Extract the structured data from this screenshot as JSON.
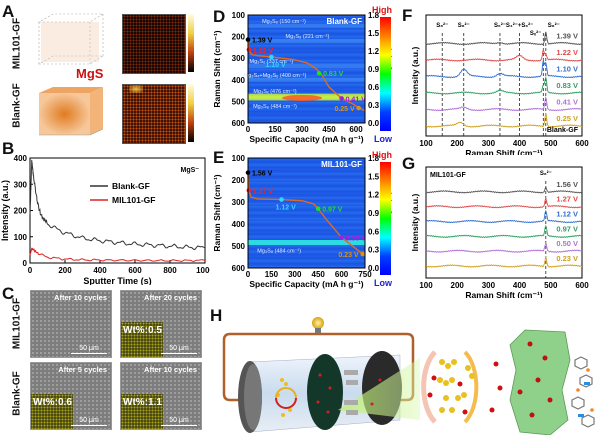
{
  "panels": {
    "A": {
      "label": "A",
      "row_labels": [
        "MIL101-GF",
        "Blank-GF"
      ],
      "species_label": "MgS",
      "species_color": "#cc1111"
    },
    "B": {
      "label": "B"
    },
    "C": {
      "label": "C",
      "row_labels": [
        "MIL101-GF",
        "Blank-GF"
      ],
      "images": [
        {
          "caption": "After 10 cycles",
          "scale": "50 μm",
          "wt": ""
        },
        {
          "caption": "After 20 cycles",
          "scale": "50 μm",
          "wt": "Wt%:0.5"
        },
        {
          "caption": "After 5 cycles",
          "scale": "50 μm",
          "wt": "Wt%:0.6"
        },
        {
          "caption": "After 10 cycles",
          "scale": "50 μm",
          "wt": "Wt%:1.1"
        }
      ]
    },
    "D": {
      "label": "D"
    },
    "E": {
      "label": "E"
    },
    "F": {
      "label": "F"
    },
    "G": {
      "label": "G"
    },
    "H": {
      "label": "H"
    }
  },
  "colorbar": {
    "high": "High",
    "low": "Low"
  },
  "chart_data": [
    {
      "id": "B",
      "type": "line",
      "title": "",
      "annotation": "MgS⁻",
      "xlabel": "Sputter Time (s)",
      "ylabel": "Intensity (a.u.)",
      "xlim": [
        0,
        1000
      ],
      "ylim": [
        0,
        400
      ],
      "xticks": [
        0,
        200,
        400,
        600,
        800,
        1000
      ],
      "yticks": [
        0,
        100,
        200,
        300,
        400
      ],
      "legend": "top-center",
      "series": [
        {
          "name": "Blank-GF",
          "color": "#333333",
          "x": [
            0,
            10,
            20,
            40,
            60,
            100,
            150,
            200,
            300,
            400,
            500,
            600,
            700,
            800,
            900,
            1000
          ],
          "y": [
            180,
            390,
            330,
            240,
            185,
            150,
            130,
            115,
            95,
            85,
            78,
            72,
            68,
            64,
            60,
            58
          ]
        },
        {
          "name": "MIL101-GF",
          "color": "#e02020",
          "x": [
            0,
            10,
            20,
            50,
            100,
            150,
            200,
            300,
            400,
            600,
            800,
            1000
          ],
          "y": [
            30,
            55,
            50,
            35,
            22,
            18,
            15,
            12,
            11,
            10,
            9,
            10
          ]
        }
      ]
    },
    {
      "id": "D",
      "type": "heatmap",
      "sample": "Blank-GF",
      "xlabel": "Specific Capacity (mA h g⁻¹)",
      "ylabel": "Raman Shift (cm⁻¹)",
      "y2label": "Voltage (V)",
      "xlim": [
        0,
        650
      ],
      "ylim": [
        100,
        600
      ],
      "y2lim": [
        0,
        1.8
      ],
      "xticks": [
        0,
        150,
        300,
        450,
        600
      ],
      "yticks": [
        100,
        200,
        300,
        400,
        500,
        600
      ],
      "y2ticks": [
        "0.0",
        "0.3",
        "0.6",
        "0.9",
        "1.2",
        "1.5",
        "1.8"
      ],
      "bands": [
        {
          "label": "Mg₃S₈ (150 cm⁻¹)",
          "shift": 150,
          "cap": 200
        },
        {
          "label": "Mg₃S₈ (221 cm⁻¹)",
          "shift": 221,
          "cap": 330
        },
        {
          "label": "Mg₃S₆ (337 cm⁻¹)",
          "shift": 337,
          "cap": 130
        },
        {
          "label": "Mg₃S₄+Mg₃S₆ (400 cm⁻¹)",
          "shift": 400,
          "cap": 150
        },
        {
          "label": "Mg₃Sₓ (476 cm⁻¹)",
          "shift": 476,
          "cap": 150
        },
        {
          "label": "Mg₃S₈ (484 cm⁻¹)",
          "shift": 484,
          "cap": 150
        }
      ],
      "voltage_curve": {
        "cap": [
          0,
          5,
          20,
          60,
          130,
          250,
          330,
          380,
          410,
          450,
          520,
          580,
          620,
          650
        ],
        "v": [
          1.39,
          1.22,
          1.14,
          1.12,
          1.1,
          1.06,
          1.0,
          0.9,
          0.8,
          0.6,
          0.41,
          0.32,
          0.25,
          0.2
        ]
      },
      "points": [
        {
          "label": "1.39 V",
          "cap": 0,
          "v": 1.39,
          "color": "#000000"
        },
        {
          "label": "1.22 V",
          "cap": 5,
          "v": 1.22,
          "color": "#ff2020"
        },
        {
          "label": "1.10 V",
          "cap": 130,
          "v": 1.1,
          "color": "#30d8ff"
        },
        {
          "label": "0.83 V",
          "cap": 395,
          "v": 0.83,
          "color": "#20e020"
        },
        {
          "label": "0.41 V",
          "cap": 520,
          "v": 0.41,
          "color": "#a020e0"
        },
        {
          "label": "0.25 V",
          "cap": 615,
          "v": 0.25,
          "color": "#d89020"
        }
      ]
    },
    {
      "id": "E",
      "type": "heatmap",
      "sample": "MIL101-GF",
      "xlabel": "Specific Capacity (mA h g⁻¹)",
      "ylabel": "Raman Shift (cm⁻¹)",
      "y2label": "Voltage (V)",
      "xlim": [
        0,
        750
      ],
      "ylim": [
        100,
        600
      ],
      "y2lim": [
        0,
        1.8
      ],
      "xticks": [
        0,
        150,
        300,
        450,
        600,
        750
      ],
      "yticks": [
        100,
        200,
        300,
        400,
        500,
        600
      ],
      "y2ticks": [
        "0.0",
        "0.3",
        "0.6",
        "0.9",
        "1.2",
        "1.5",
        "1.8"
      ],
      "bands": [
        {
          "label": "Mg₃S₈ (484 cm⁻¹)",
          "shift": 484,
          "cap": 200
        }
      ],
      "voltage_curve": {
        "cap": [
          0,
          5,
          20,
          60,
          215,
          350,
          420,
          450,
          500,
          600,
          700,
          750
        ],
        "v": [
          1.56,
          1.27,
          1.16,
          1.13,
          1.12,
          1.1,
          1.05,
          0.97,
          0.8,
          0.5,
          0.3,
          0.2
        ]
      },
      "points": [
        {
          "label": "1.56 V",
          "cap": 0,
          "v": 1.56,
          "color": "#000000"
        },
        {
          "label": "1.27 V",
          "cap": 5,
          "v": 1.27,
          "color": "#ff2020"
        },
        {
          "label": "1.12 V",
          "cap": 215,
          "v": 1.12,
          "color": "#30d8ff"
        },
        {
          "label": "0.97 V",
          "cap": 450,
          "v": 0.97,
          "color": "#20e020"
        },
        {
          "label": "0.50 V",
          "cap": 600,
          "v": 0.5,
          "color": "#a020e0"
        },
        {
          "label": "0.23 V",
          "cap": 735,
          "v": 0.23,
          "color": "#d89020"
        }
      ]
    },
    {
      "id": "F",
      "type": "line",
      "sample": "Blank-GF",
      "xlabel": "Raman Shift (cm⁻¹)",
      "ylabel": "Intensity (a.u.)",
      "xlim": [
        100,
        600
      ],
      "xticks": [
        100,
        200,
        300,
        400,
        500,
        600
      ],
      "ref_lines": [
        {
          "x": 152,
          "label": "S₈²⁻"
        },
        {
          "x": 221,
          "label": "S₈²⁻"
        },
        {
          "x": 337,
          "label": "S₆²⁻"
        },
        {
          "x": 400,
          "label": "S₄²⁻+S₆²⁻"
        },
        {
          "x": 476,
          "label": "Sₓ²⁻"
        },
        {
          "x": 484,
          "label": "S₈²⁻"
        }
      ],
      "series": [
        {
          "name": "1.39 V",
          "color": "#555555",
          "peaks": [
            [
              337,
              0.15
            ],
            [
              484,
              1.2
            ]
          ]
        },
        {
          "name": "1.22 V",
          "color": "#e04848",
          "peaks": [
            [
              400,
              0.4
            ],
            [
              476,
              1.0
            ],
            [
              484,
              0.6
            ]
          ]
        },
        {
          "name": "1.10 V",
          "color": "#2f6fd0",
          "peaks": [
            [
              221,
              0.7
            ],
            [
              337,
              0.3
            ],
            [
              476,
              1.5
            ],
            [
              484,
              1.3
            ]
          ]
        },
        {
          "name": "0.83 V",
          "color": "#2ea060",
          "peaks": [
            [
              337,
              0.2
            ],
            [
              476,
              0.7
            ],
            [
              484,
              1.5
            ]
          ]
        },
        {
          "name": "0.41 V",
          "color": "#b070d8",
          "peaks": [
            [
              221,
              0.2
            ],
            [
              484,
              1.2
            ]
          ]
        },
        {
          "name": "0.25 V",
          "color": "#d0a020",
          "peaks": [
            [
              210,
              0.35
            ],
            [
              484,
              1.3
            ]
          ]
        }
      ]
    },
    {
      "id": "G",
      "type": "line",
      "sample": "MIL101-GF",
      "xlabel": "Raman Shift (cm⁻¹)",
      "ylabel": "Intensity (a.u.)",
      "xlim": [
        100,
        600
      ],
      "xticks": [
        100,
        200,
        300,
        400,
        500,
        600
      ],
      "ref_lines": [
        {
          "x": 484,
          "label": "S₈²⁻"
        }
      ],
      "series": [
        {
          "name": "1.56 V",
          "color": "#555555",
          "peaks": [
            [
              484,
              0.5
            ]
          ]
        },
        {
          "name": "1.27 V",
          "color": "#e04848",
          "peaks": [
            [
              484,
              0.8
            ]
          ]
        },
        {
          "name": "1.12 V",
          "color": "#2f6fd0",
          "peaks": [
            [
              484,
              1.0
            ]
          ]
        },
        {
          "name": "0.97 V",
          "color": "#2ea060",
          "peaks": [
            [
              484,
              1.0
            ]
          ]
        },
        {
          "name": "0.50 V",
          "color": "#b070d8",
          "peaks": [
            [
              484,
              0.8
            ]
          ]
        },
        {
          "name": "0.23 V",
          "color": "#d0a020",
          "peaks": [
            [
              484,
              0.9
            ]
          ]
        }
      ]
    }
  ]
}
